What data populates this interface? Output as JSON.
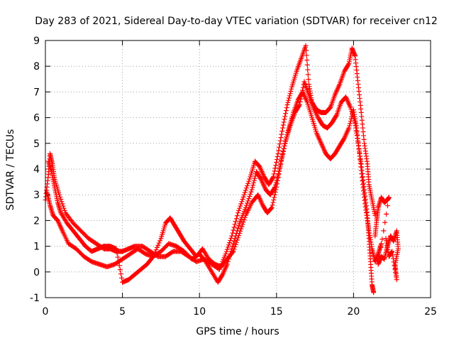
{
  "chart_data": {
    "type": "scatter",
    "title": "Day 283 of 2021, Sidereal Day-to-day VTEC variation (SDTVAR) for receiver cn12",
    "xlabel": "GPS time / hours",
    "ylabel": "SDTVAR / TECUs",
    "xlim": [
      0,
      25
    ],
    "ylim": [
      -1,
      9
    ],
    "xticks": [
      "0",
      "5",
      "10",
      "15",
      "20",
      "25"
    ],
    "yticks": [
      "-1",
      "0",
      "1",
      "2",
      "3",
      "4",
      "5",
      "6",
      "7",
      "8",
      "9"
    ],
    "grid": true,
    "marker": "+",
    "series": [
      {
        "name": "track-a",
        "color": "#ff0000",
        "points": [
          [
            0.0,
            2.8
          ],
          [
            0.2,
            3.8
          ],
          [
            0.3,
            4.6
          ],
          [
            0.45,
            4.2
          ],
          [
            0.6,
            3.6
          ],
          [
            0.9,
            3.0
          ],
          [
            1.3,
            2.3
          ],
          [
            1.8,
            1.9
          ],
          [
            2.3,
            1.6
          ],
          [
            2.8,
            1.3
          ],
          [
            3.3,
            1.1
          ],
          [
            3.8,
            0.9
          ],
          [
            4.2,
            0.9
          ],
          [
            4.6,
            0.8
          ],
          [
            5.0,
            0.8
          ],
          [
            5.4,
            0.9
          ],
          [
            5.8,
            1.0
          ],
          [
            6.3,
            1.0
          ],
          [
            6.8,
            0.8
          ],
          [
            7.3,
            0.6
          ],
          [
            7.8,
            0.6
          ],
          [
            8.3,
            0.8
          ],
          [
            8.8,
            0.8
          ],
          [
            9.3,
            0.6
          ],
          [
            9.8,
            0.4
          ],
          [
            10.3,
            0.5
          ],
          [
            10.8,
            0.3
          ],
          [
            11.3,
            0.1
          ],
          [
            11.7,
            0.7
          ],
          [
            12.1,
            1.4
          ],
          [
            12.5,
            2.3
          ],
          [
            12.9,
            3.0
          ],
          [
            13.3,
            3.7
          ],
          [
            13.6,
            4.3
          ],
          [
            13.9,
            4.1
          ],
          [
            14.2,
            3.7
          ],
          [
            14.5,
            3.4
          ],
          [
            14.8,
            3.7
          ],
          [
            15.1,
            4.6
          ],
          [
            15.4,
            5.6
          ],
          [
            15.7,
            6.5
          ],
          [
            16.0,
            7.2
          ],
          [
            16.3,
            7.8
          ],
          [
            16.6,
            8.3
          ],
          [
            16.9,
            8.8
          ],
          [
            17.1,
            7.3
          ],
          [
            17.3,
            6.6
          ],
          [
            17.6,
            6.3
          ],
          [
            17.9,
            6.2
          ],
          [
            18.2,
            6.2
          ],
          [
            18.5,
            6.4
          ],
          [
            18.8,
            6.9
          ],
          [
            19.1,
            7.3
          ],
          [
            19.4,
            7.8
          ],
          [
            19.7,
            8.1
          ],
          [
            19.9,
            8.7
          ],
          [
            20.1,
            8.4
          ],
          [
            20.3,
            7.3
          ],
          [
            20.5,
            6.2
          ],
          [
            20.7,
            5.0
          ],
          [
            20.9,
            4.2
          ],
          [
            21.0,
            3.4
          ],
          [
            21.2,
            2.8
          ],
          [
            21.4,
            2.2
          ]
        ]
      },
      {
        "name": "track-b",
        "color": "#ff0000",
        "points": [
          [
            0.1,
            3.1
          ],
          [
            0.3,
            2.6
          ],
          [
            0.5,
            2.2
          ],
          [
            0.8,
            2.0
          ],
          [
            1.1,
            1.6
          ],
          [
            1.5,
            1.1
          ],
          [
            2.0,
            0.9
          ],
          [
            2.5,
            0.6
          ],
          [
            3.0,
            0.4
          ],
          [
            3.5,
            0.3
          ],
          [
            4.0,
            0.2
          ],
          [
            4.5,
            0.3
          ],
          [
            5.0,
            0.5
          ],
          [
            5.5,
            0.7
          ],
          [
            6.0,
            0.9
          ],
          [
            6.5,
            0.7
          ],
          [
            7.0,
            0.6
          ],
          [
            7.5,
            0.8
          ],
          [
            8.0,
            1.1
          ],
          [
            8.5,
            1.0
          ],
          [
            9.0,
            0.8
          ],
          [
            9.5,
            0.5
          ],
          [
            10.0,
            0.7
          ],
          [
            10.4,
            0.4
          ],
          [
            10.8,
            0.0
          ],
          [
            11.2,
            -0.4
          ],
          [
            11.5,
            -0.1
          ],
          [
            11.8,
            0.3
          ],
          [
            12.2,
            1.1
          ],
          [
            12.6,
            1.9
          ],
          [
            13.0,
            2.5
          ],
          [
            13.4,
            3.2
          ],
          [
            13.7,
            3.9
          ],
          [
            14.0,
            3.6
          ],
          [
            14.3,
            3.2
          ],
          [
            14.6,
            3.0
          ],
          [
            14.9,
            3.3
          ],
          [
            15.2,
            4.0
          ],
          [
            15.5,
            4.9
          ],
          [
            15.8,
            5.6
          ],
          [
            16.1,
            6.2
          ],
          [
            16.4,
            6.7
          ],
          [
            16.7,
            7.0
          ],
          [
            17.0,
            6.6
          ],
          [
            17.3,
            6.0
          ],
          [
            17.6,
            5.4
          ],
          [
            17.9,
            5.0
          ],
          [
            18.2,
            4.6
          ],
          [
            18.5,
            4.4
          ],
          [
            18.8,
            4.6
          ],
          [
            19.1,
            4.9
          ],
          [
            19.4,
            5.2
          ],
          [
            19.7,
            5.6
          ],
          [
            20.0,
            6.3
          ],
          [
            20.2,
            5.6
          ],
          [
            20.4,
            4.5
          ],
          [
            20.6,
            3.4
          ],
          [
            20.8,
            2.4
          ],
          [
            21.0,
            1.6
          ],
          [
            21.2,
            0.9
          ],
          [
            21.4,
            0.4
          ],
          [
            21.6,
            0.7
          ],
          [
            21.8,
            1.1
          ]
        ]
      },
      {
        "name": "track-c",
        "color": "#ff0000",
        "points": [
          [
            0.2,
            4.3
          ],
          [
            0.4,
            3.9
          ],
          [
            0.6,
            3.3
          ],
          [
            0.8,
            2.7
          ],
          [
            1.0,
            2.3
          ],
          [
            1.4,
            1.9
          ],
          [
            1.8,
            1.6
          ],
          [
            2.2,
            1.3
          ],
          [
            2.6,
            1.0
          ],
          [
            3.0,
            0.8
          ],
          [
            3.4,
            0.9
          ],
          [
            3.8,
            1.0
          ],
          [
            4.2,
            1.0
          ],
          [
            4.6,
            0.9
          ],
          [
            5.0,
            -0.4
          ],
          [
            5.4,
            -0.3
          ],
          [
            5.8,
            -0.1
          ],
          [
            6.2,
            0.1
          ],
          [
            6.6,
            0.3
          ],
          [
            7.0,
            0.6
          ],
          [
            7.5,
            1.3
          ],
          [
            7.8,
            1.9
          ],
          [
            8.1,
            2.1
          ],
          [
            8.4,
            1.8
          ],
          [
            8.7,
            1.5
          ],
          [
            9.0,
            1.2
          ],
          [
            9.4,
            0.9
          ],
          [
            9.8,
            0.6
          ],
          [
            10.2,
            0.9
          ],
          [
            10.6,
            0.5
          ],
          [
            11.0,
            0.3
          ],
          [
            11.4,
            0.2
          ],
          [
            11.8,
            0.5
          ],
          [
            12.2,
            0.8
          ],
          [
            12.6,
            1.5
          ],
          [
            13.0,
            2.2
          ],
          [
            13.4,
            2.7
          ],
          [
            13.8,
            3.0
          ],
          [
            14.1,
            2.6
          ],
          [
            14.4,
            2.3
          ],
          [
            14.7,
            2.5
          ],
          [
            15.0,
            3.3
          ],
          [
            15.3,
            4.3
          ],
          [
            15.6,
            5.1
          ],
          [
            15.9,
            5.7
          ],
          [
            16.2,
            6.2
          ],
          [
            16.5,
            6.5
          ],
          [
            16.8,
            7.4
          ],
          [
            17.1,
            6.9
          ],
          [
            17.4,
            6.4
          ],
          [
            17.7,
            6.0
          ],
          [
            18.0,
            5.7
          ],
          [
            18.3,
            5.6
          ],
          [
            18.6,
            5.8
          ],
          [
            18.9,
            6.1
          ],
          [
            19.2,
            6.6
          ],
          [
            19.5,
            6.8
          ],
          [
            19.8,
            6.4
          ],
          [
            20.1,
            5.8
          ],
          [
            20.3,
            5.0
          ],
          [
            20.5,
            4.2
          ],
          [
            20.7,
            3.2
          ],
          [
            20.9,
            2.2
          ],
          [
            21.0,
            1.3
          ],
          [
            21.1,
            0.4
          ],
          [
            21.2,
            -0.5
          ],
          [
            21.3,
            -0.8
          ]
        ]
      },
      {
        "name": "track-d",
        "color": "#ff0000",
        "points": [
          [
            21.4,
            1.4
          ],
          [
            21.5,
            2.0
          ],
          [
            21.6,
            2.5
          ],
          [
            21.8,
            2.9
          ],
          [
            22.0,
            2.7
          ],
          [
            22.2,
            2.8
          ],
          [
            22.3,
            2.9
          ],
          [
            21.6,
            0.3
          ],
          [
            21.8,
            0.6
          ],
          [
            22.0,
            0.5
          ],
          [
            22.2,
            1.0
          ],
          [
            22.4,
            1.4
          ],
          [
            22.6,
            1.2
          ],
          [
            22.8,
            1.6
          ],
          [
            22.9,
            0.9
          ],
          [
            22.7,
            0.3
          ],
          [
            22.8,
            -0.3
          ],
          [
            22.5,
            0.8
          ],
          [
            22.3,
            0.6
          ],
          [
            22.1,
            1.3
          ]
        ]
      }
    ]
  }
}
